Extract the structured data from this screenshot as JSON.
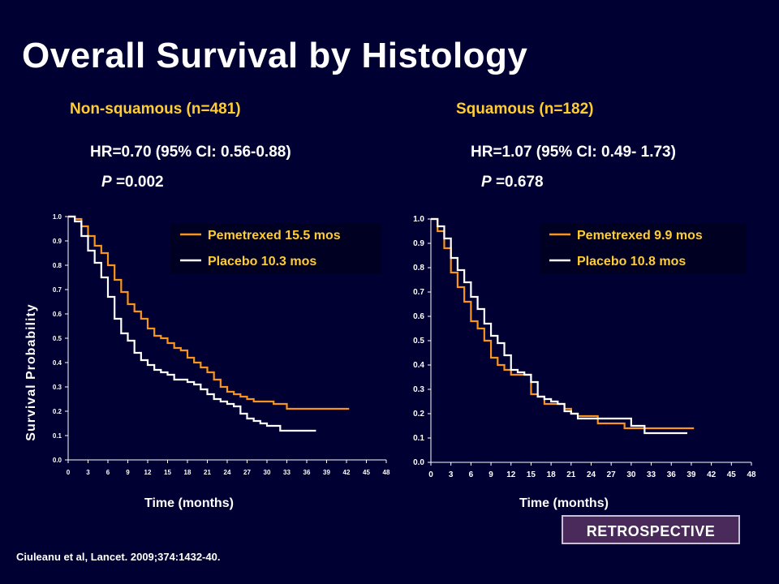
{
  "title": "Overall Survival by Histology",
  "panels": [
    {
      "title": "Non-squamous (n=481)",
      "hr": "HR=0.70  (95% CI: 0.56-0.88)",
      "p_label": "P",
      "p_value": " =0.002",
      "xlabel": "Time (months)"
    },
    {
      "title": "Squamous (n=182)",
      "hr": "HR=1.07 (95% CI: 0.49- 1.73)",
      "p_label": "P",
      "p_value": " =0.678",
      "xlabel": "Time (months)"
    }
  ],
  "ylabel": "Survival Probability",
  "citation": "Ciuleanu et al, Lancet. 2009;374:1432-40.",
  "badge": "RETROSPECTIVE",
  "colors": {
    "pemetrexed": "#f7941d",
    "placebo": "#ffffff",
    "accent": "#ffcc33"
  },
  "chart_data": [
    {
      "type": "line",
      "xlim": [
        0,
        48
      ],
      "ylim": [
        0,
        1.0
      ],
      "xticks": [
        "0",
        "3",
        "6",
        "9",
        "12",
        "15",
        "18",
        "21",
        "24",
        "27",
        "30",
        "33",
        "36",
        "39",
        "42",
        "45",
        "48"
      ],
      "yticks": [
        "0.0",
        "0.1",
        "0.2",
        "0.3",
        "0.4",
        "0.5",
        "0.6",
        "0.7",
        "0.8",
        "0.9",
        "1.0"
      ],
      "legend_position": "top-right",
      "series": [
        {
          "name": "Pemetrexed 15.5 mos",
          "color": "#f7941d",
          "x": [
            0,
            1,
            2,
            3,
            4,
            5,
            6,
            7,
            8,
            9,
            10,
            11,
            12,
            13,
            14,
            15,
            16,
            17,
            18,
            19,
            20,
            21,
            22,
            23,
            24,
            25,
            26,
            27,
            28,
            29,
            30,
            31,
            32,
            33,
            34,
            35,
            36,
            37,
            38,
            39,
            40,
            41,
            42
          ],
          "y": [
            1.0,
            0.99,
            0.96,
            0.92,
            0.88,
            0.85,
            0.8,
            0.74,
            0.69,
            0.64,
            0.61,
            0.58,
            0.54,
            0.51,
            0.5,
            0.48,
            0.46,
            0.45,
            0.42,
            0.4,
            0.38,
            0.36,
            0.33,
            0.3,
            0.28,
            0.27,
            0.26,
            0.25,
            0.24,
            0.24,
            0.24,
            0.23,
            0.23,
            0.21,
            0.21,
            0.21,
            0.21,
            0.21,
            0.21,
            0.21,
            0.21,
            0.21,
            0.21
          ]
        },
        {
          "name": "Placebo 10.3 mos",
          "color": "#ffffff",
          "x": [
            0,
            1,
            2,
            3,
            4,
            5,
            6,
            7,
            8,
            9,
            10,
            11,
            12,
            13,
            14,
            15,
            16,
            17,
            18,
            19,
            20,
            21,
            22,
            23,
            24,
            25,
            26,
            27,
            28,
            29,
            30,
            31,
            32,
            33,
            34,
            35,
            36,
            37
          ],
          "y": [
            1.0,
            0.98,
            0.92,
            0.86,
            0.81,
            0.75,
            0.67,
            0.58,
            0.52,
            0.49,
            0.44,
            0.41,
            0.39,
            0.37,
            0.36,
            0.35,
            0.33,
            0.33,
            0.32,
            0.31,
            0.29,
            0.27,
            0.25,
            0.24,
            0.23,
            0.22,
            0.19,
            0.17,
            0.16,
            0.15,
            0.14,
            0.14,
            0.12,
            0.12,
            0.12,
            0.12,
            0.12,
            0.12
          ]
        }
      ]
    },
    {
      "type": "line",
      "xlim": [
        0,
        48
      ],
      "ylim": [
        0,
        1.0
      ],
      "xticks": [
        "0",
        "3",
        "6",
        "9",
        "12",
        "15",
        "18",
        "21",
        "24",
        "27",
        "30",
        "33",
        "36",
        "39",
        "42",
        "45",
        "48"
      ],
      "yticks": [
        "0.0",
        "0.1",
        "0.2",
        "0.3",
        "0.4",
        "0.5",
        "0.6",
        "0.7",
        "0.8",
        "0.9",
        "1.0"
      ],
      "legend_position": "top-right",
      "series": [
        {
          "name": "Pemetrexed 9.9 mos",
          "color": "#f7941d",
          "x": [
            0,
            1,
            2,
            3,
            4,
            5,
            6,
            7,
            8,
            9,
            10,
            11,
            12,
            13,
            14,
            15,
            16,
            17,
            18,
            19,
            20,
            21,
            22,
            23,
            24,
            25,
            26,
            27,
            28,
            29,
            30,
            31,
            32,
            33,
            34,
            35,
            36,
            37,
            38,
            39
          ],
          "y": [
            1.0,
            0.95,
            0.88,
            0.78,
            0.72,
            0.66,
            0.58,
            0.55,
            0.5,
            0.43,
            0.4,
            0.38,
            0.36,
            0.36,
            0.36,
            0.28,
            0.27,
            0.24,
            0.24,
            0.24,
            0.22,
            0.2,
            0.19,
            0.19,
            0.19,
            0.16,
            0.16,
            0.16,
            0.16,
            0.14,
            0.14,
            0.14,
            0.14,
            0.14,
            0.14,
            0.14,
            0.14,
            0.14,
            0.14,
            0.14
          ]
        },
        {
          "name": "Placebo 10.8 mos",
          "color": "#ffffff",
          "x": [
            0,
            1,
            2,
            3,
            4,
            5,
            6,
            7,
            8,
            9,
            10,
            11,
            12,
            13,
            14,
            15,
            16,
            17,
            18,
            19,
            20,
            21,
            22,
            23,
            24,
            25,
            26,
            27,
            28,
            29,
            30,
            31,
            32,
            33,
            34,
            35,
            36,
            37,
            38
          ],
          "y": [
            1.0,
            0.97,
            0.92,
            0.84,
            0.79,
            0.74,
            0.68,
            0.63,
            0.57,
            0.52,
            0.49,
            0.44,
            0.38,
            0.37,
            0.36,
            0.33,
            0.27,
            0.26,
            0.25,
            0.24,
            0.21,
            0.2,
            0.18,
            0.18,
            0.18,
            0.18,
            0.18,
            0.18,
            0.18,
            0.18,
            0.15,
            0.15,
            0.12,
            0.12,
            0.12,
            0.12,
            0.12,
            0.12,
            0.12
          ]
        }
      ]
    }
  ]
}
